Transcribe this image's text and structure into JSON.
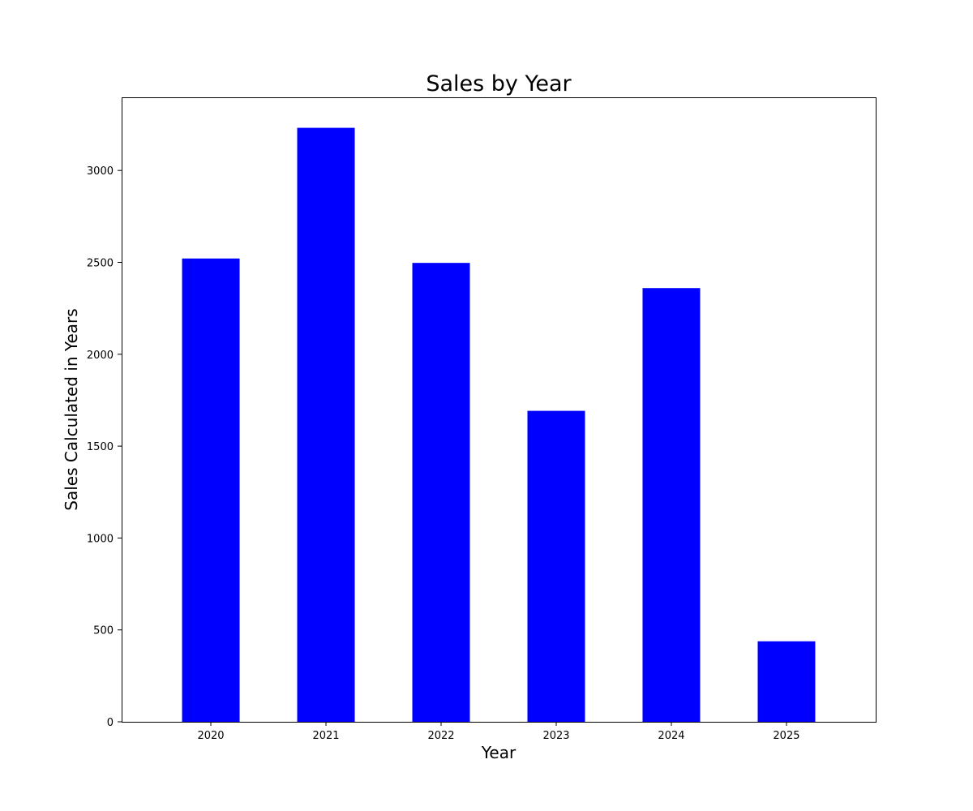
{
  "chart_data": {
    "type": "bar",
    "title": "Sales by Year",
    "xlabel": "Year",
    "ylabel": "Sales Calculated in Years",
    "categories": [
      "2020",
      "2021",
      "2022",
      "2023",
      "2024",
      "2025"
    ],
    "values": [
      2521,
      3232,
      2497,
      1692,
      2360,
      438
    ],
    "ylim": [
      0,
      3398
    ],
    "yticks": [
      0,
      500,
      1000,
      1500,
      2000,
      2500,
      3000
    ],
    "bar_color": "#0000ff",
    "grid": false,
    "legend": false
  }
}
